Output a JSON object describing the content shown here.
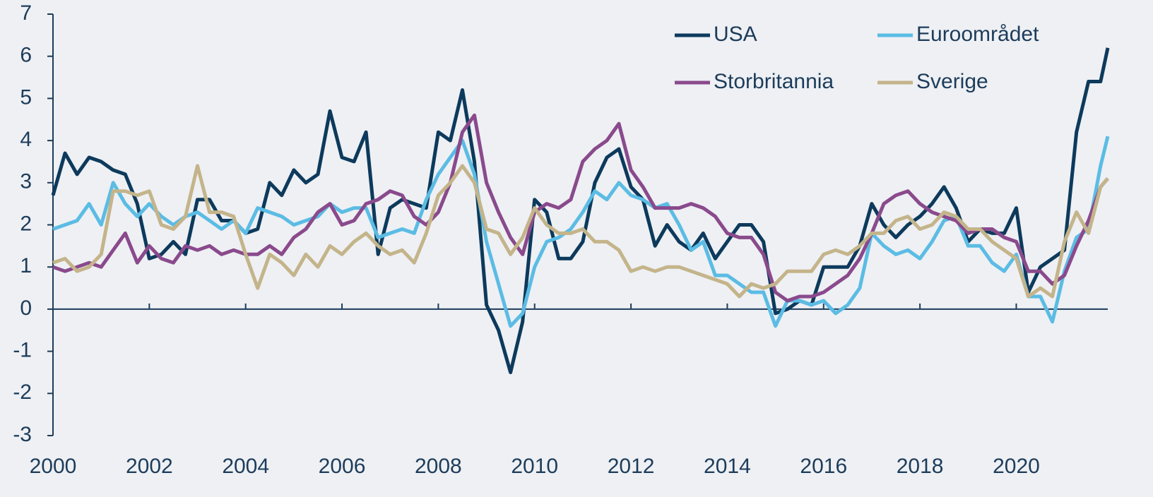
{
  "chart_data": {
    "type": "line",
    "x": [
      2000,
      2000.25,
      2000.5,
      2000.75,
      2001,
      2001.25,
      2001.5,
      2001.75,
      2002,
      2002.25,
      2002.5,
      2002.75,
      2003,
      2003.25,
      2003.5,
      2003.75,
      2004,
      2004.25,
      2004.5,
      2004.75,
      2005,
      2005.25,
      2005.5,
      2005.75,
      2006,
      2006.25,
      2006.5,
      2006.75,
      2007,
      2007.25,
      2007.5,
      2007.75,
      2008,
      2008.25,
      2008.5,
      2008.75,
      2009,
      2009.25,
      2009.5,
      2009.75,
      2010,
      2010.25,
      2010.5,
      2010.75,
      2011,
      2011.25,
      2011.5,
      2011.75,
      2012,
      2012.25,
      2012.5,
      2012.75,
      2013,
      2013.25,
      2013.5,
      2013.75,
      2014,
      2014.25,
      2014.5,
      2014.75,
      2015,
      2015.25,
      2015.5,
      2015.75,
      2016,
      2016.25,
      2016.5,
      2016.75,
      2017,
      2017.25,
      2017.5,
      2017.75,
      2018,
      2018.25,
      2018.5,
      2018.75,
      2019,
      2019.25,
      2019.5,
      2019.75,
      2020,
      2020.25,
      2020.5,
      2020.75,
      2021,
      2021.25,
      2021.5,
      2021.75,
      2021.9
    ],
    "series": [
      {
        "name": "USA",
        "color": "#0d3a5c",
        "values": [
          2.7,
          3.7,
          3.2,
          3.6,
          3.5,
          3.3,
          3.2,
          2.5,
          1.2,
          1.3,
          1.6,
          1.3,
          2.6,
          2.6,
          2.1,
          2.1,
          1.8,
          1.9,
          3.0,
          2.7,
          3.3,
          3.0,
          3.2,
          4.7,
          3.6,
          3.5,
          4.2,
          1.3,
          2.4,
          2.6,
          2.5,
          2.4,
          4.2,
          4.0,
          5.2,
          3.5,
          0.1,
          -0.5,
          -1.5,
          -0.3,
          2.6,
          2.3,
          1.2,
          1.2,
          1.6,
          3.0,
          3.6,
          3.8,
          2.9,
          2.6,
          1.5,
          2.0,
          1.6,
          1.4,
          1.8,
          1.2,
          1.6,
          2.0,
          2.0,
          1.6,
          -0.1,
          0.0,
          0.2,
          0.1,
          1.0,
          1.0,
          1.0,
          1.5,
          2.5,
          2.0,
          1.7,
          2.0,
          2.2,
          2.5,
          2.9,
          2.4,
          1.6,
          1.9,
          1.8,
          1.8,
          2.4,
          0.4,
          1.0,
          1.2,
          1.4,
          4.2,
          5.4,
          5.4,
          6.2
        ]
      },
      {
        "name": "Euroområdet",
        "color": "#5bbce4",
        "values": [
          1.9,
          2.0,
          2.1,
          2.5,
          2.0,
          3.0,
          2.5,
          2.2,
          2.5,
          2.2,
          2.0,
          2.2,
          2.3,
          2.1,
          1.9,
          2.1,
          1.8,
          2.4,
          2.3,
          2.2,
          2.0,
          2.1,
          2.2,
          2.5,
          2.3,
          2.4,
          2.4,
          1.7,
          1.8,
          1.9,
          1.8,
          2.6,
          3.2,
          3.6,
          4.0,
          3.2,
          1.6,
          0.6,
          -0.4,
          -0.1,
          1.0,
          1.6,
          1.7,
          1.9,
          2.3,
          2.8,
          2.6,
          3.0,
          2.7,
          2.6,
          2.4,
          2.5,
          2.0,
          1.4,
          1.6,
          0.8,
          0.8,
          0.6,
          0.4,
          0.4,
          -0.4,
          0.2,
          0.2,
          0.1,
          0.2,
          -0.1,
          0.1,
          0.5,
          1.8,
          1.5,
          1.3,
          1.4,
          1.2,
          1.6,
          2.1,
          2.2,
          1.5,
          1.5,
          1.1,
          0.9,
          1.3,
          0.3,
          0.3,
          -0.3,
          0.9,
          1.7,
          1.9,
          3.4,
          4.1
        ]
      },
      {
        "name": "Storbritannia",
        "color": "#8a4a8c",
        "values": [
          1.0,
          0.9,
          1.0,
          1.1,
          1.0,
          1.4,
          1.8,
          1.1,
          1.5,
          1.2,
          1.1,
          1.5,
          1.4,
          1.5,
          1.3,
          1.4,
          1.3,
          1.3,
          1.5,
          1.3,
          1.7,
          1.9,
          2.3,
          2.5,
          2.0,
          2.1,
          2.5,
          2.6,
          2.8,
          2.7,
          2.2,
          2.0,
          2.3,
          3.0,
          4.2,
          4.6,
          3.0,
          2.3,
          1.7,
          1.3,
          2.3,
          2.5,
          2.4,
          2.6,
          3.5,
          3.8,
          4.0,
          4.4,
          3.3,
          2.9,
          2.4,
          2.4,
          2.4,
          2.5,
          2.4,
          2.2,
          1.8,
          1.7,
          1.7,
          1.3,
          0.4,
          0.2,
          0.3,
          0.3,
          0.4,
          0.6,
          0.8,
          1.2,
          1.8,
          2.5,
          2.7,
          2.8,
          2.5,
          2.3,
          2.2,
          2.1,
          1.8,
          1.9,
          1.9,
          1.7,
          1.6,
          0.9,
          0.9,
          0.6,
          0.8,
          1.5,
          2.1,
          2.9,
          3.1
        ]
      },
      {
        "name": "Sverige",
        "color": "#c4b48a",
        "values": [
          1.1,
          1.2,
          0.9,
          1.0,
          1.3,
          2.8,
          2.8,
          2.7,
          2.8,
          2.0,
          1.9,
          2.2,
          3.4,
          2.3,
          2.3,
          2.2,
          1.3,
          0.5,
          1.3,
          1.1,
          0.8,
          1.3,
          1.0,
          1.5,
          1.3,
          1.6,
          1.8,
          1.5,
          1.3,
          1.4,
          1.1,
          1.8,
          2.7,
          3.0,
          3.4,
          3.0,
          1.9,
          1.8,
          1.3,
          1.7,
          2.4,
          2.0,
          1.8,
          1.8,
          1.9,
          1.6,
          1.6,
          1.4,
          0.9,
          1.0,
          0.9,
          1.0,
          1.0,
          0.9,
          0.8,
          0.7,
          0.6,
          0.3,
          0.6,
          0.5,
          0.6,
          0.9,
          0.9,
          0.9,
          1.3,
          1.4,
          1.3,
          1.5,
          1.8,
          1.8,
          2.1,
          2.2,
          1.9,
          2.0,
          2.3,
          2.2,
          1.9,
          1.9,
          1.6,
          1.4,
          1.2,
          0.3,
          0.5,
          0.3,
          1.6,
          2.3,
          1.8,
          2.9,
          3.1
        ]
      }
    ],
    "xlim": [
      2000,
      2021.9
    ],
    "xticks": [
      2000,
      2002,
      2004,
      2006,
      2008,
      2010,
      2012,
      2014,
      2016,
      2018,
      2020
    ],
    "ylim": [
      -3,
      7
    ],
    "yticks": [
      -3,
      -2,
      -1,
      0,
      1,
      2,
      3,
      4,
      5,
      6,
      7
    ],
    "grid": false,
    "legend": "upper right"
  }
}
